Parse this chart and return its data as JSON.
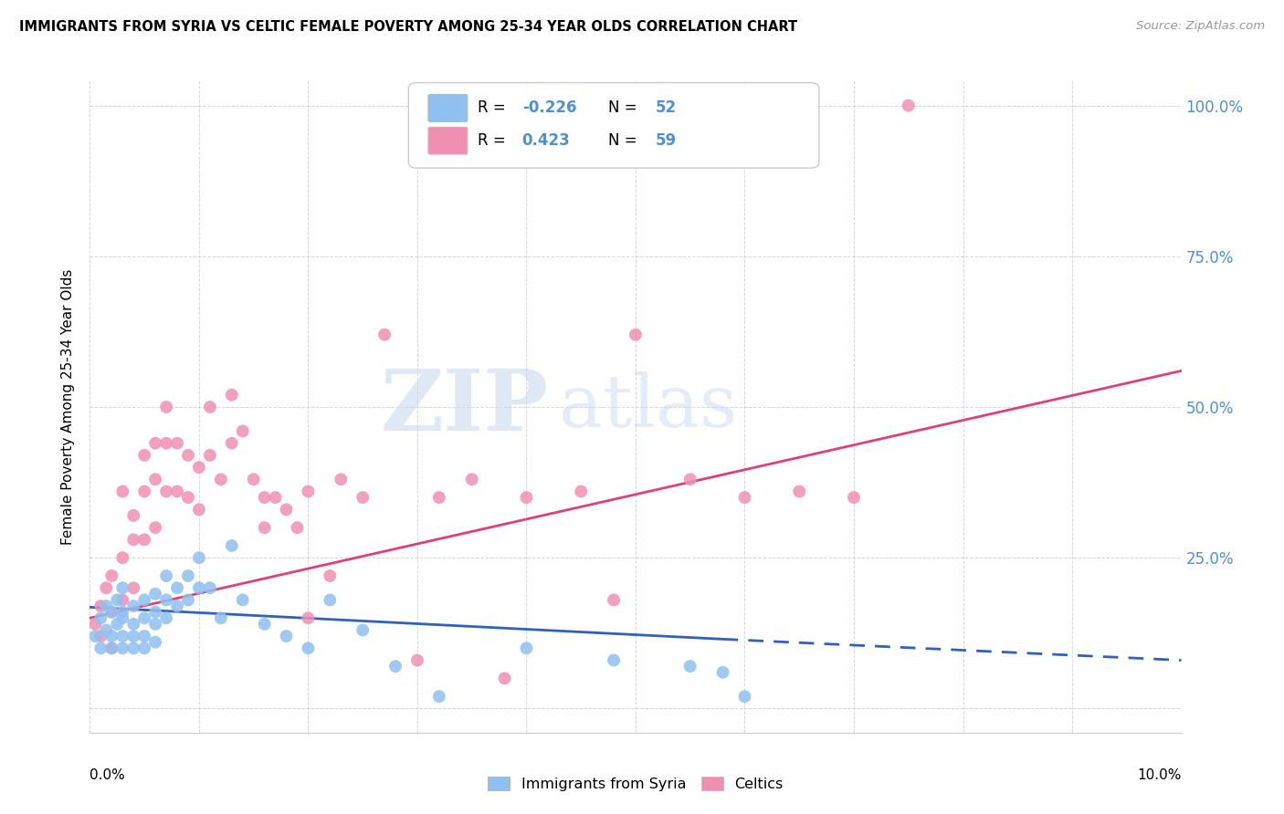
{
  "title": "IMMIGRANTS FROM SYRIA VS CELTIC FEMALE POVERTY AMONG 25-34 YEAR OLDS CORRELATION CHART",
  "source": "Source: ZipAtlas.com",
  "ylabel": "Female Poverty Among 25-34 Year Olds",
  "xlim": [
    0.0,
    0.1
  ],
  "ylim": [
    -0.04,
    1.04
  ],
  "color_syria": "#90c0f0",
  "color_celtics": "#f090b0",
  "color_syria_line": "#3060c0",
  "color_celtics_line": "#e0407a",
  "color_right_axis": "#5090d0",
  "watermark_zip": "ZIP",
  "watermark_atlas": "atlas",
  "syria_x": [
    0.0005,
    0.001,
    0.001,
    0.0015,
    0.0015,
    0.002,
    0.002,
    0.002,
    0.0025,
    0.0025,
    0.003,
    0.003,
    0.003,
    0.003,
    0.003,
    0.004,
    0.004,
    0.004,
    0.004,
    0.005,
    0.005,
    0.005,
    0.005,
    0.006,
    0.006,
    0.006,
    0.006,
    0.007,
    0.007,
    0.007,
    0.008,
    0.008,
    0.009,
    0.009,
    0.01,
    0.01,
    0.011,
    0.012,
    0.013,
    0.014,
    0.016,
    0.018,
    0.02,
    0.022,
    0.025,
    0.028,
    0.032,
    0.04,
    0.048,
    0.055,
    0.058,
    0.06
  ],
  "syria_y": [
    0.12,
    0.1,
    0.15,
    0.13,
    0.17,
    0.12,
    0.16,
    0.1,
    0.14,
    0.18,
    0.15,
    0.12,
    0.1,
    0.2,
    0.16,
    0.17,
    0.14,
    0.12,
    0.1,
    0.18,
    0.15,
    0.12,
    0.1,
    0.19,
    0.16,
    0.14,
    0.11,
    0.22,
    0.18,
    0.15,
    0.2,
    0.17,
    0.22,
    0.18,
    0.25,
    0.2,
    0.2,
    0.15,
    0.27,
    0.18,
    0.14,
    0.12,
    0.1,
    0.18,
    0.13,
    0.07,
    0.02,
    0.1,
    0.08,
    0.07,
    0.06,
    0.02
  ],
  "celtics_x": [
    0.0005,
    0.001,
    0.001,
    0.0015,
    0.002,
    0.002,
    0.002,
    0.003,
    0.003,
    0.003,
    0.004,
    0.004,
    0.004,
    0.005,
    0.005,
    0.005,
    0.006,
    0.006,
    0.006,
    0.007,
    0.007,
    0.007,
    0.008,
    0.008,
    0.009,
    0.009,
    0.01,
    0.01,
    0.011,
    0.011,
    0.012,
    0.013,
    0.013,
    0.014,
    0.015,
    0.016,
    0.016,
    0.017,
    0.018,
    0.019,
    0.02,
    0.02,
    0.022,
    0.023,
    0.025,
    0.027,
    0.03,
    0.032,
    0.035,
    0.038,
    0.04,
    0.045,
    0.048,
    0.05,
    0.055,
    0.06,
    0.065,
    0.07,
    0.075
  ],
  "celtics_y": [
    0.14,
    0.17,
    0.12,
    0.2,
    0.16,
    0.22,
    0.1,
    0.36,
    0.25,
    0.18,
    0.32,
    0.28,
    0.2,
    0.42,
    0.36,
    0.28,
    0.44,
    0.38,
    0.3,
    0.5,
    0.44,
    0.36,
    0.44,
    0.36,
    0.42,
    0.35,
    0.4,
    0.33,
    0.5,
    0.42,
    0.38,
    0.52,
    0.44,
    0.46,
    0.38,
    0.35,
    0.3,
    0.35,
    0.33,
    0.3,
    0.36,
    0.15,
    0.22,
    0.38,
    0.35,
    0.62,
    0.08,
    0.35,
    0.38,
    0.05,
    0.35,
    0.36,
    0.18,
    0.62,
    0.38,
    0.35,
    0.36,
    0.35,
    1.0
  ],
  "trend_syria_x0": 0.0,
  "trend_syria_y0": 0.168,
  "trend_syria_x1": 0.058,
  "trend_syria_y1": 0.115,
  "trend_syria_dash_x0": 0.058,
  "trend_syria_dash_y0": 0.115,
  "trend_syria_dash_x1": 0.1,
  "trend_syria_dash_y1": 0.08,
  "trend_celtics_x0": 0.0,
  "trend_celtics_y0": 0.15,
  "trend_celtics_x1": 0.1,
  "trend_celtics_y1": 0.56
}
